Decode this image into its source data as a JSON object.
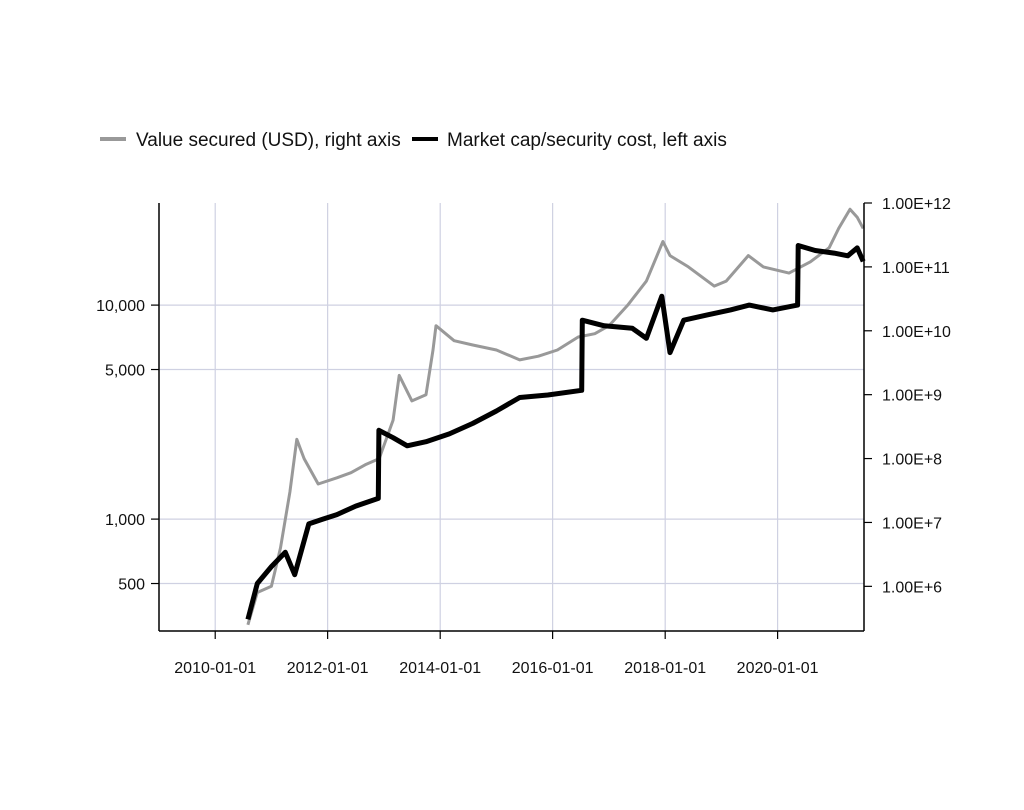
{
  "chart_data": {
    "type": "line",
    "title": "",
    "xlabel": "",
    "ylabel_left": "",
    "ylabel_right": "",
    "legend": {
      "placement": "top-left",
      "entries": [
        {
          "label": "Value secured (USD), right axis",
          "color": "#999999"
        },
        {
          "label": "Market cap/security cost, left axis",
          "color": "#000000"
        }
      ]
    },
    "x_axis": {
      "type": "date",
      "range": [
        "2009-01-01",
        "2021-07-15"
      ],
      "ticks": [
        "2010-01-01",
        "2012-01-01",
        "2014-01-01",
        "2016-01-01",
        "2018-01-01",
        "2020-01-01"
      ],
      "grid": true
    },
    "y_left": {
      "scale": "log",
      "range": [
        300,
        30000
      ],
      "ticks": [
        500,
        1000,
        5000,
        10000
      ],
      "tick_labels": [
        "500",
        "1,000",
        "5,000",
        "10,000"
      ],
      "grid": true
    },
    "y_right": {
      "scale": "log",
      "range": [
        200000,
        1000000000000
      ],
      "ticks": [
        1000000,
        10000000,
        100000000,
        1000000000,
        10000000000,
        100000000000,
        1000000000000
      ],
      "tick_labels": [
        "1.00E+6",
        "1.00E+7",
        "1.00E+8",
        "1.00E+9",
        "1.00E+10",
        "1.00E+11",
        "1.00E+12"
      ]
    },
    "series": [
      {
        "name": "Value secured (USD), right axis",
        "axis": "right",
        "color": "#999999",
        "x": [
          "2010-08-01",
          "2010-10-01",
          "2011-01-01",
          "2011-03-01",
          "2011-05-01",
          "2011-06-15",
          "2011-08-01",
          "2011-11-01",
          "2012-03-01",
          "2012-06-01",
          "2012-09-01",
          "2012-12-01",
          "2013-03-01",
          "2013-04-10",
          "2013-07-01",
          "2013-10-01",
          "2013-11-15",
          "2013-12-05",
          "2014-04-01",
          "2014-08-01",
          "2015-01-01",
          "2015-06-01",
          "2015-10-01",
          "2016-02-01",
          "2016-06-15",
          "2016-10-01",
          "2017-01-01",
          "2017-05-01",
          "2017-09-01",
          "2017-12-17",
          "2018-02-01",
          "2018-06-01",
          "2018-11-15",
          "2019-02-01",
          "2019-06-25",
          "2019-10-01",
          "2020-03-15",
          "2020-08-01",
          "2020-12-01",
          "2021-02-01",
          "2021-04-15",
          "2021-06-01",
          "2021-07-10"
        ],
        "values": [
          250000,
          800000,
          1000000,
          4000000,
          30000000,
          200000000,
          100000000,
          40000000,
          50000000,
          60000000,
          80000000,
          100000000,
          400000000,
          2000000000,
          800000000,
          1000000000,
          5000000000,
          12000000000,
          7000000000,
          6000000000,
          5000000000,
          3500000000,
          4000000000,
          5000000000,
          8000000000,
          9000000000,
          12000000000,
          25000000000,
          60000000000,
          250000000000,
          150000000000,
          100000000000,
          50000000000,
          60000000000,
          150000000000,
          100000000000,
          80000000000,
          120000000000,
          200000000000,
          400000000000,
          800000000000,
          600000000000,
          400000000000
        ]
      },
      {
        "name": "Market cap/security cost, left axis",
        "axis": "left",
        "color": "#000000",
        "x": [
          "2010-08-01",
          "2010-10-01",
          "2011-01-01",
          "2011-04-01",
          "2011-06-01",
          "2011-09-01",
          "2011-12-01",
          "2012-03-01",
          "2012-07-01",
          "2012-11-25",
          "2012-11-29",
          "2013-03-01",
          "2013-06-01",
          "2013-10-01",
          "2014-03-01",
          "2014-08-01",
          "2015-01-01",
          "2015-06-01",
          "2015-12-01",
          "2016-07-08",
          "2016-07-12",
          "2016-12-01",
          "2017-06-01",
          "2017-09-01",
          "2017-12-10",
          "2018-02-01",
          "2018-05-01",
          "2018-10-01",
          "2019-03-01",
          "2019-07-01",
          "2019-12-01",
          "2020-05-10",
          "2020-05-14",
          "2020-09-01",
          "2021-01-01",
          "2021-04-01",
          "2021-06-01",
          "2021-07-10"
        ],
        "values": [
          340,
          500,
          600,
          700,
          550,
          950,
          1000,
          1050,
          1150,
          1250,
          2600,
          2400,
          2200,
          2300,
          2500,
          2800,
          3200,
          3700,
          3800,
          4000,
          8500,
          8000,
          7800,
          7000,
          11000,
          6000,
          8500,
          9000,
          9500,
          10000,
          9500,
          10000,
          19000,
          18000,
          17500,
          17000,
          18500,
          16000
        ]
      }
    ]
  }
}
